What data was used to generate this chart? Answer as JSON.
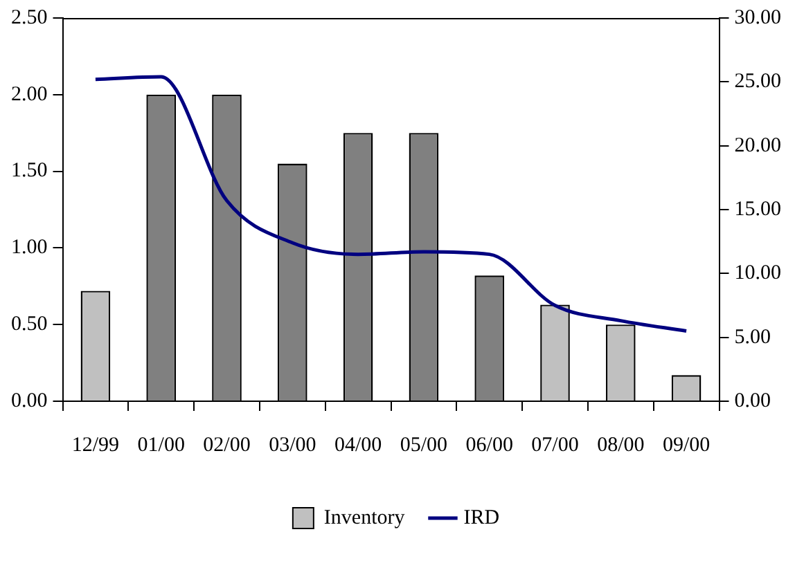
{
  "chart_data": {
    "type": "bar",
    "categories": [
      "12/99",
      "01/00",
      "02/00",
      "03/00",
      "04/00",
      "05/00",
      "06/00",
      "07/00",
      "08/00",
      "09/00"
    ],
    "series": [
      {
        "name": "Inventory",
        "color": "#c0c0c0",
        "colors": [
          "#c0c0c0",
          "#808080",
          "#808080",
          "#808080",
          "#808080",
          "#808080",
          "#808080",
          "#c0c0c0",
          "#c0c0c0",
          "#c0c0c0"
        ],
        "values": [
          0.72,
          2.0,
          2.0,
          1.55,
          1.75,
          1.75,
          0.82,
          0.63,
          0.5,
          0.17
        ]
      },
      {
        "name": "IRD",
        "type": "line",
        "axis": "y2",
        "color": "#000080",
        "values": [
          25.2,
          25.4,
          15.7,
          12.4,
          11.5,
          11.7,
          11.5,
          7.5,
          6.3,
          5.5
        ]
      }
    ],
    "ylim": [
      0,
      2.5
    ],
    "yticks": [
      {
        "value": 0,
        "label": "0.00"
      },
      {
        "value": 0.5,
        "label": "0.50"
      },
      {
        "value": 1,
        "label": "1.00"
      },
      {
        "value": 1.5,
        "label": "1.50"
      },
      {
        "value": 2,
        "label": "2.00"
      },
      {
        "value": 2.5,
        "label": "2.50"
      }
    ],
    "y2lim": [
      0,
      30
    ],
    "y2ticks": [
      {
        "value": 0,
        "label": "0.00"
      },
      {
        "value": 5,
        "label": "5.00"
      },
      {
        "value": 10,
        "label": "10.00"
      },
      {
        "value": 15,
        "label": "15.00"
      },
      {
        "value": 20,
        "label": "20.00"
      },
      {
        "value": 25,
        "label": "25.00"
      },
      {
        "value": 30,
        "label": "30.00"
      }
    ],
    "grid": false,
    "legend": "bottom",
    "marker": "none",
    "line_style": "solid"
  }
}
